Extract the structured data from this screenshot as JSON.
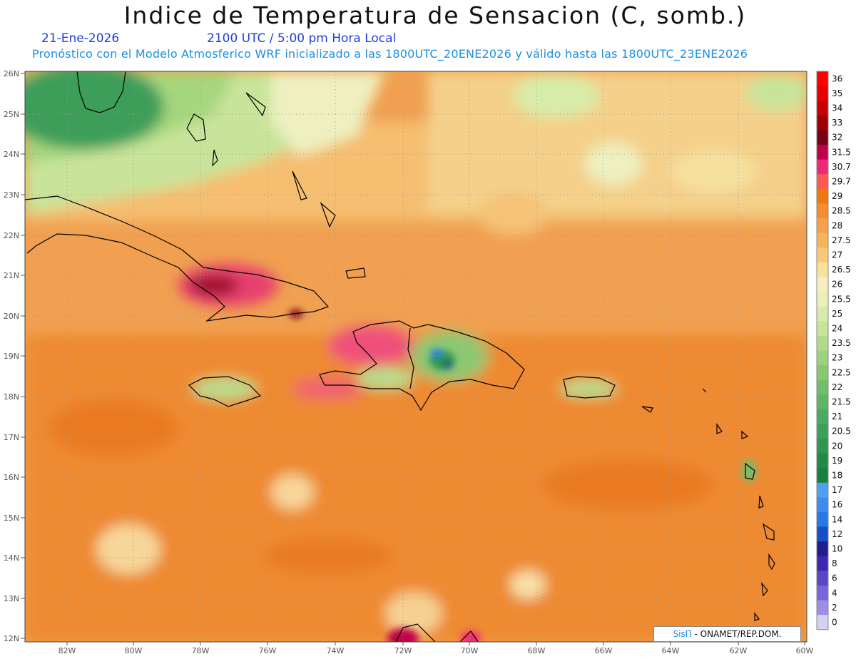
{
  "header": {
    "title": "Indice de Temperatura de Sensacion (C, somb.)",
    "date": "21-Ene-2026",
    "time": "2100 UTC / 5:00 pm Hora Local",
    "subtitle": "Pronóstico con el Modelo Atmosferico WRF inicializado a las 1800UTC_20ENE2026 y válido hasta las  1800UTC_23ENE2026"
  },
  "axes": {
    "lat_labels": [
      "26N",
      "25N",
      "24N",
      "23N",
      "22N",
      "21N",
      "20N",
      "19N",
      "18N",
      "17N",
      "16N",
      "15N",
      "14N",
      "13N",
      "12N"
    ],
    "lon_labels": [
      "82W",
      "80W",
      "78W",
      "76W",
      "74W",
      "72W",
      "70W",
      "68W",
      "66W",
      "64W",
      "62W",
      "60W"
    ]
  },
  "colorbar": {
    "labels": [
      "36",
      "35",
      "34",
      "33",
      "32",
      "31.5",
      "30.7",
      "29.7",
      "29",
      "28.5",
      "28",
      "27.5",
      "27",
      "26.5",
      "26",
      "25.5",
      "25",
      "24",
      "23.5",
      "23",
      "22.5",
      "22",
      "21.5",
      "21",
      "20.5",
      "20",
      "19",
      "18",
      "17",
      "16",
      "14",
      "12",
      "10",
      "8",
      "6",
      "4",
      "2",
      "0"
    ],
    "colors": [
      "#ff0000",
      "#e60000",
      "#c80000",
      "#a00000",
      "#780018",
      "#c0004a",
      "#f0287a",
      "#fa5a50",
      "#f07810",
      "#f58c32",
      "#f5a04a",
      "#f5b45a",
      "#fac878",
      "#fae19b",
      "#f8eec0",
      "#eaf0b8",
      "#d7ecac",
      "#c3e69b",
      "#afdc8c",
      "#9bd27d",
      "#87c870",
      "#73bd6a",
      "#5fb466",
      "#4baa62",
      "#3ca05a",
      "#2d9650",
      "#1e8c46",
      "#168040",
      "#50a0f0",
      "#3c8cf0",
      "#2878e6",
      "#1450c8",
      "#1e1e8c",
      "#3c28b4",
      "#5a46c8",
      "#7864dc",
      "#a08ce6",
      "#d2d2f0"
    ]
  },
  "credit": {
    "brand": "SisΠ",
    "text": " - ONAMET/REP.DOM."
  }
}
